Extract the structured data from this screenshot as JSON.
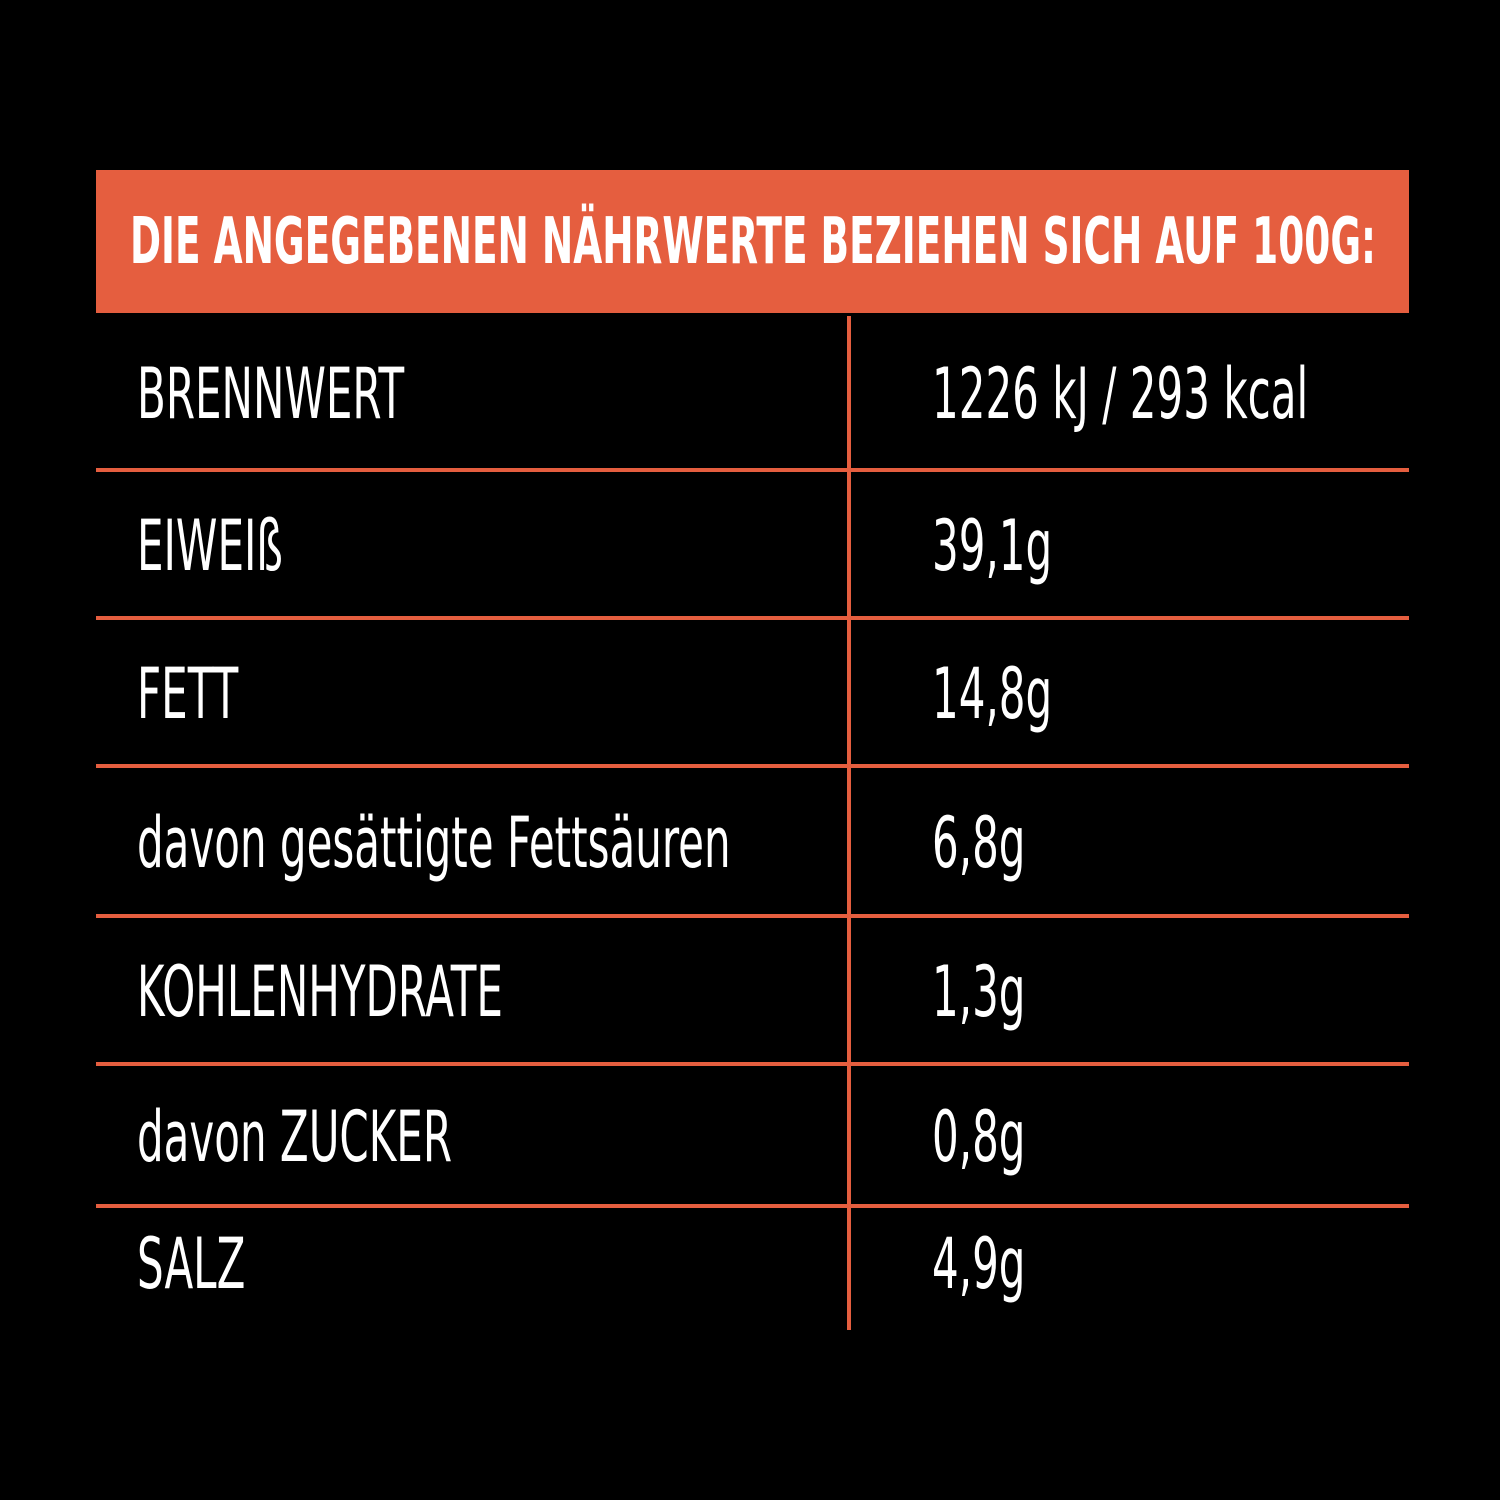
{
  "colors": {
    "background": "#000000",
    "accent": "#e55e3f",
    "text": "#ffffff"
  },
  "header": {
    "title": "DIE ANGEGEBENEN NÄHRWERTE BEZIEHEN SICH AUF 100G:"
  },
  "table": {
    "rows": [
      {
        "label": "BRENNWERT",
        "value": "1226 kJ / 293 kcal"
      },
      {
        "label": "EIWEIß",
        "value": "39,1g"
      },
      {
        "label": "FETT",
        "value": "14,8g"
      },
      {
        "label": "davon gesättigte Fettsäuren",
        "value": "6,8g"
      },
      {
        "label": "KOHLENHYDRATE",
        "value": "1,3g"
      },
      {
        "label": "davon ZUCKER",
        "value": "0,8g"
      },
      {
        "label": "SALZ",
        "value": "4,9g"
      }
    ]
  }
}
